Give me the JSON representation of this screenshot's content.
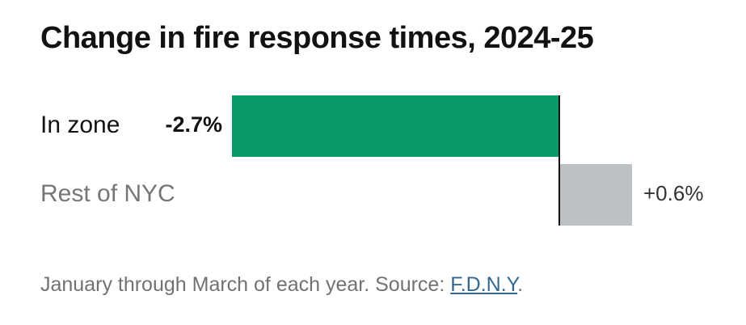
{
  "chart_data": {
    "type": "bar",
    "orientation": "horizontal",
    "title": "Change in fire response times, 2024-25",
    "categories": [
      "In zone",
      "Rest of NYC"
    ],
    "values": [
      -2.7,
      0.6
    ],
    "value_labels": [
      "-2.7%",
      "+0.6%"
    ],
    "unit": "%",
    "colors": [
      "#079a67",
      "#bdc1c4"
    ],
    "category_label_colors": [
      "#121212",
      "#767676"
    ],
    "baseline": 0,
    "grid": false,
    "legend": "none"
  },
  "footnote": {
    "text": "January through March of each year. Source: ",
    "source_link": "F.D.N.Y",
    "end": "."
  }
}
